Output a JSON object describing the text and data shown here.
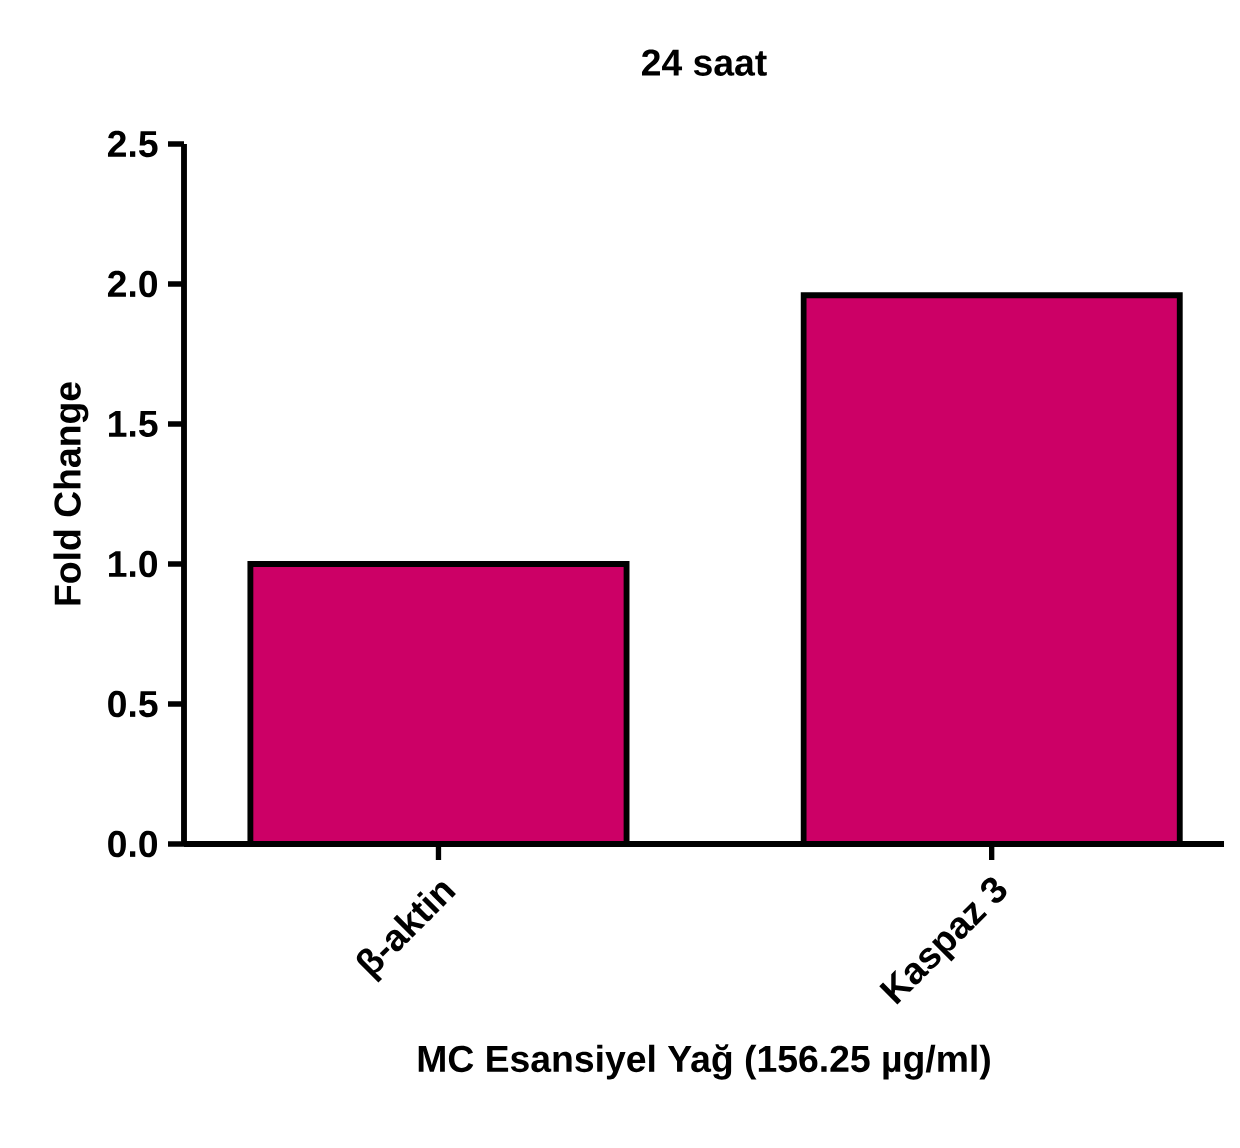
{
  "chart_data": {
    "type": "bar",
    "title": "24 saat",
    "xlabel": "MC Esansiyel Yağ (156.25 µg/ml)",
    "ylabel": "Fold Change",
    "categories": [
      "β-aktin",
      "Kaspaz 3"
    ],
    "values": [
      1.0,
      1.96
    ],
    "colors": [
      "#cc0066",
      "#cc0066"
    ],
    "ylim": [
      0,
      2.5
    ],
    "yticks": [
      {
        "value": 0,
        "label": "0.0"
      },
      {
        "value": 0.5,
        "label": "0.5"
      },
      {
        "value": 1,
        "label": "1.0"
      },
      {
        "value": 1.5,
        "label": "1.5"
      },
      {
        "value": 2,
        "label": "2.0"
      },
      {
        "value": 2.5,
        "label": "2.5"
      }
    ]
  }
}
